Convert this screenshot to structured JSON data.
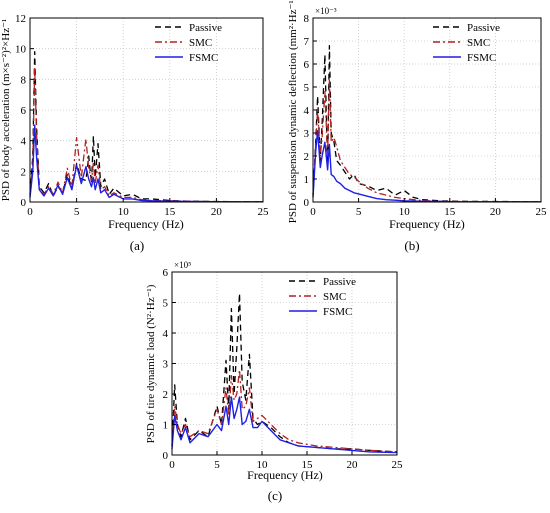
{
  "colors": {
    "passive": "#000000",
    "smc": "#b22222",
    "fsmc": "#1f1fe6",
    "grid": "#c8c8c8"
  },
  "chart_data": [
    {
      "id": "a",
      "type": "line",
      "caption": "(a)",
      "xlabel": "Frequency (Hz)",
      "ylabel": "PSD of body acceleration  (m×s⁻²)²×Hz⁻¹",
      "xlim": [
        0,
        25
      ],
      "ylim": [
        0,
        12
      ],
      "xticks": [
        0,
        5,
        10,
        15,
        20,
        25
      ],
      "yticks": [
        0,
        2,
        4,
        6,
        8,
        10,
        12
      ],
      "grid": true,
      "legend_position": "top-right",
      "series": [
        {
          "name": "Passive",
          "style": "dashed",
          "x": [
            0,
            0.3,
            0.5,
            0.7,
            1.0,
            1.5,
            2,
            2.5,
            3,
            3.5,
            4,
            4.5,
            5,
            5.5,
            6,
            6.3,
            6.6,
            6.8,
            7.0,
            7.3,
            7.6,
            8,
            8.5,
            9,
            10,
            11,
            12,
            13,
            15,
            17,
            20,
            22,
            25
          ],
          "y": [
            0.5,
            3.0,
            9.8,
            5.0,
            1.0,
            0.6,
            1.2,
            0.4,
            1.0,
            0.6,
            1.8,
            0.9,
            2.5,
            1.5,
            1.4,
            3.0,
            1.2,
            4.3,
            1.6,
            3.8,
            1.0,
            1.5,
            0.5,
            0.9,
            0.4,
            0.5,
            0.2,
            0.2,
            0.1,
            0.05,
            0.03,
            0.02,
            0.01
          ]
        },
        {
          "name": "SMC",
          "style": "dashdot",
          "x": [
            0,
            0.3,
            0.5,
            0.7,
            1.0,
            1.5,
            2,
            2.5,
            3,
            3.5,
            4,
            4.5,
            5,
            5.5,
            6,
            6.3,
            6.6,
            6.8,
            7.0,
            7.3,
            7.6,
            8,
            8.5,
            9,
            10,
            11,
            12,
            13,
            15,
            17,
            20,
            22,
            25
          ],
          "y": [
            0.4,
            2.5,
            8.8,
            4.5,
            0.9,
            0.5,
            1.0,
            0.5,
            1.3,
            0.6,
            2.2,
            1.0,
            4.2,
            1.6,
            4.1,
            2.2,
            1.4,
            2.6,
            1.2,
            2.4,
            0.8,
            1.0,
            0.4,
            0.6,
            0.3,
            0.3,
            0.15,
            0.1,
            0.08,
            0.05,
            0.02,
            0.02,
            0.01
          ]
        },
        {
          "name": "FSMC",
          "style": "solid",
          "x": [
            0,
            0.3,
            0.5,
            0.7,
            1.0,
            1.5,
            2,
            2.5,
            3,
            3.5,
            4,
            4.5,
            5,
            5.5,
            6,
            6.3,
            6.6,
            6.8,
            7.0,
            7.3,
            7.6,
            8,
            8.5,
            9,
            10,
            11,
            12,
            13,
            15,
            17,
            20,
            22,
            25
          ],
          "y": [
            0.3,
            2.0,
            5.0,
            3.0,
            0.8,
            0.4,
            0.9,
            0.4,
            1.1,
            0.5,
            1.6,
            0.8,
            2.4,
            1.2,
            2.3,
            1.5,
            1.0,
            1.6,
            0.8,
            1.5,
            0.6,
            0.8,
            0.3,
            0.5,
            0.2,
            0.2,
            0.1,
            0.08,
            0.05,
            0.03,
            0.02,
            0.01,
            0.01
          ]
        }
      ]
    },
    {
      "id": "b",
      "type": "line",
      "caption": "(b)",
      "xlabel": "Frequency (Hz)",
      "ylabel": "PSD of suspension dynamic deflection  (mm²·Hz⁻¹)",
      "scale_note": "×10⁻³",
      "xlim": [
        0,
        25
      ],
      "ylim": [
        0,
        8
      ],
      "xticks": [
        0,
        5,
        10,
        15,
        20,
        25
      ],
      "yticks": [
        0,
        1,
        2,
        3,
        4,
        5,
        6,
        7,
        8
      ],
      "grid": true,
      "legend_position": "top-right",
      "series": [
        {
          "name": "Passive",
          "style": "dashed",
          "x": [
            0,
            0.3,
            0.5,
            0.8,
            1.0,
            1.3,
            1.6,
            1.8,
            2.0,
            2.3,
            2.6,
            3,
            3.5,
            4,
            4.5,
            5,
            6,
            7,
            8,
            9,
            10,
            11,
            12,
            14,
            16,
            20,
            25
          ],
          "y": [
            0.3,
            2.6,
            4.6,
            1.8,
            3.4,
            6.4,
            1.5,
            6.8,
            3.0,
            2.6,
            1.8,
            1.6,
            1.3,
            1.0,
            1.2,
            0.8,
            0.7,
            0.5,
            0.6,
            0.3,
            0.5,
            0.2,
            0.1,
            0.05,
            0.03,
            0.02,
            0.01
          ]
        },
        {
          "name": "SMC",
          "style": "dashdot",
          "x": [
            0,
            0.3,
            0.5,
            0.8,
            1.0,
            1.3,
            1.6,
            1.8,
            2.0,
            2.3,
            2.6,
            3,
            3.5,
            4,
            4.5,
            5,
            6,
            7,
            8,
            9,
            10,
            11,
            12,
            14,
            16,
            20,
            25
          ],
          "y": [
            0.3,
            2.5,
            4.0,
            2.0,
            2.8,
            4.8,
            2.0,
            5.3,
            2.6,
            2.8,
            2.4,
            1.8,
            1.5,
            1.2,
            1.1,
            0.9,
            0.6,
            0.4,
            0.3,
            0.2,
            0.15,
            0.1,
            0.06,
            0.03,
            0.02,
            0.01,
            0.01
          ]
        },
        {
          "name": "FSMC",
          "style": "solid",
          "x": [
            0,
            0.3,
            0.5,
            0.8,
            1.0,
            1.3,
            1.6,
            1.8,
            2.0,
            2.3,
            2.6,
            3,
            3.5,
            4,
            4.5,
            5,
            6,
            7,
            8,
            9,
            10,
            11,
            12,
            14,
            16,
            20,
            25
          ],
          "y": [
            0.2,
            2.2,
            3.1,
            1.5,
            2.0,
            2.6,
            1.4,
            2.5,
            1.2,
            1.1,
            0.9,
            0.8,
            0.6,
            0.5,
            0.4,
            0.35,
            0.25,
            0.15,
            0.1,
            0.08,
            0.05,
            0.04,
            0.03,
            0.02,
            0.01,
            0.01,
            0.01
          ]
        }
      ]
    },
    {
      "id": "c",
      "type": "line",
      "caption": "(c)",
      "xlabel": "Frequency (Hz)",
      "ylabel": "PSD of tire dynamic load  (N²·Hz⁻¹)",
      "scale_note": "×10⁵",
      "xlim": [
        0,
        25
      ],
      "ylim": [
        0,
        6
      ],
      "xticks": [
        0,
        5,
        10,
        15,
        20,
        25
      ],
      "yticks": [
        0,
        1,
        2,
        3,
        4,
        5,
        6
      ],
      "grid": true,
      "legend_position": "top-right",
      "series": [
        {
          "name": "Passive",
          "style": "dashed",
          "x": [
            0,
            0.3,
            0.6,
            1.0,
            1.5,
            2,
            3,
            4,
            5,
            5.5,
            6.0,
            6.3,
            6.6,
            6.9,
            7.2,
            7.5,
            7.8,
            8.2,
            8.6,
            9,
            9.5,
            10,
            11,
            12,
            13,
            14,
            16,
            18,
            20,
            22,
            25
          ],
          "y": [
            0.3,
            2.3,
            1.0,
            0.6,
            1.2,
            0.5,
            0.8,
            0.6,
            1.6,
            1.0,
            3.1,
            1.5,
            4.8,
            2.0,
            3.5,
            5.3,
            2.4,
            1.8,
            3.3,
            1.2,
            1.0,
            1.1,
            0.9,
            0.6,
            0.4,
            0.3,
            0.25,
            0.2,
            0.2,
            0.15,
            0.1
          ]
        },
        {
          "name": "SMC",
          "style": "dashdot",
          "x": [
            0,
            0.3,
            0.6,
            1.0,
            1.5,
            2,
            3,
            4,
            5,
            5.5,
            6.0,
            6.3,
            6.6,
            6.9,
            7.2,
            7.5,
            7.8,
            8.2,
            8.6,
            9,
            9.5,
            10,
            11,
            12,
            13,
            14,
            16,
            18,
            20,
            22,
            25
          ],
          "y": [
            0.3,
            1.6,
            1.0,
            0.7,
            1.0,
            0.6,
            0.8,
            0.7,
            1.5,
            1.0,
            2.2,
            1.3,
            2.6,
            1.8,
            2.0,
            2.8,
            1.5,
            1.6,
            2.2,
            1.1,
            1.2,
            1.3,
            1.0,
            0.7,
            0.5,
            0.4,
            0.3,
            0.25,
            0.2,
            0.15,
            0.1
          ]
        },
        {
          "name": "FSMC",
          "style": "solid",
          "x": [
            0,
            0.3,
            0.6,
            1.0,
            1.5,
            2,
            3,
            4,
            5,
            5.5,
            6.0,
            6.3,
            6.6,
            6.9,
            7.2,
            7.5,
            7.8,
            8.2,
            8.6,
            9,
            9.5,
            10,
            11,
            12,
            13,
            14,
            16,
            18,
            20,
            22,
            25
          ],
          "y": [
            0.2,
            1.3,
            0.8,
            0.5,
            0.9,
            0.4,
            0.7,
            0.6,
            1.0,
            0.8,
            1.6,
            1.0,
            1.9,
            1.2,
            1.5,
            1.9,
            1.0,
            1.1,
            1.5,
            0.9,
            0.9,
            1.1,
            0.8,
            0.5,
            0.4,
            0.3,
            0.25,
            0.2,
            0.15,
            0.1,
            0.08
          ]
        }
      ]
    }
  ]
}
